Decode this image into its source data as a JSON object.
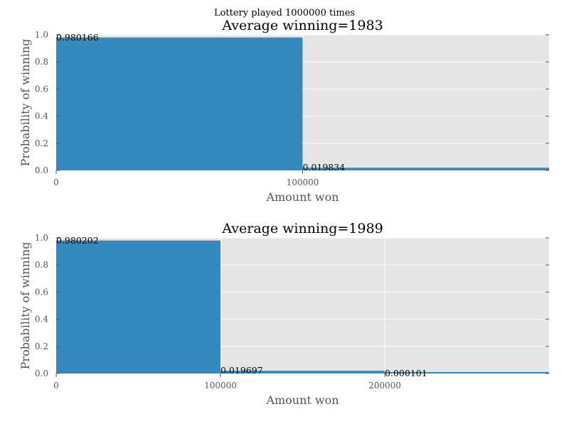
{
  "suptitle": "Lottery played 1000000 times",
  "chart_data": [
    {
      "type": "bar",
      "title": "Average winning=1983",
      "xlabel": "Amount won",
      "ylabel": "Probability of winning",
      "xlim": [
        0,
        200000
      ],
      "ylim": [
        0,
        1.0
      ],
      "xticks": [
        0,
        100000
      ],
      "xtick_labels": [
        "0",
        "100000"
      ],
      "yticks": [
        0.0,
        0.2,
        0.4,
        0.6,
        0.8,
        1.0
      ],
      "ytick_labels": [
        "0.0",
        "0.2",
        "0.4",
        "0.6",
        "0.8",
        "1.0"
      ],
      "bin_width": 100000,
      "bins": [
        0,
        100000
      ],
      "values": [
        0.980166,
        0.019834
      ],
      "labels": [
        "0.980166",
        "0.019834"
      ],
      "grid": true,
      "color": "#348abd",
      "background": "#e5e5e5"
    },
    {
      "type": "bar",
      "title": "Average winning=1989",
      "xlabel": "Amount won",
      "ylabel": "Probability of winning",
      "xlim": [
        0,
        300000
      ],
      "ylim": [
        0,
        1.0
      ],
      "xticks": [
        0,
        100000,
        200000
      ],
      "xtick_labels": [
        "0",
        "100000",
        "200000"
      ],
      "yticks": [
        0.0,
        0.2,
        0.4,
        0.6,
        0.8,
        1.0
      ],
      "ytick_labels": [
        "0.0",
        "0.2",
        "0.4",
        "0.6",
        "0.8",
        "1.0"
      ],
      "bin_width": 100000,
      "bins": [
        0,
        100000,
        200000
      ],
      "values": [
        0.980202,
        0.019697,
        0.000101
      ],
      "labels": [
        "0.980202",
        "0.019697",
        "0.000101"
      ],
      "grid": true,
      "color": "#348abd",
      "background": "#e5e5e5"
    }
  ]
}
